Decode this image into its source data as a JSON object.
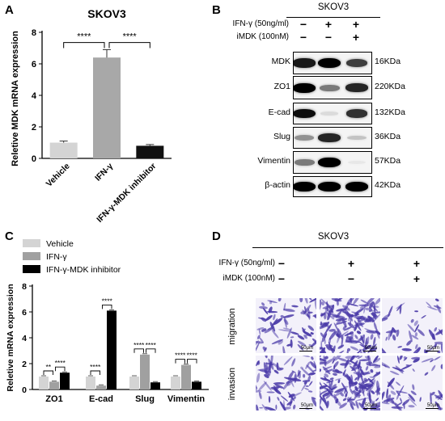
{
  "panels": {
    "A": "A",
    "B": "B",
    "C": "C",
    "D": "D"
  },
  "panel_a": {
    "chart_data": {
      "type": "bar",
      "title": "SKOV3",
      "ylabel": "Reletive MDK mRNA expression",
      "categories": [
        "Vehicle",
        "IFN-γ",
        "IFN-γ-MDK inhibitor"
      ],
      "values": [
        1.0,
        6.4,
        0.8
      ],
      "errors": [
        0.1,
        0.5,
        0.08
      ],
      "colors": [
        "#d4d4d4",
        "#a8a8a8",
        "#111111"
      ],
      "yticks": [
        "0",
        "2",
        "4",
        "6",
        "8"
      ],
      "ylim": [
        0,
        8
      ],
      "significance": [
        {
          "from": 0,
          "to": 1,
          "label": "****"
        },
        {
          "from": 1,
          "to": 2,
          "label": "****"
        }
      ]
    }
  },
  "panel_b": {
    "title": "SKOV3",
    "conditions": [
      {
        "label": "IFN-γ (50ng/ml)",
        "marks": [
          "−",
          "+",
          "+"
        ]
      },
      {
        "label": "iMDK (100nM)",
        "marks": [
          "−",
          "−",
          "+"
        ]
      }
    ],
    "blots": [
      {
        "protein": "MDK",
        "size": "16KDa",
        "intensity": [
          0.9,
          1.0,
          0.75
        ]
      },
      {
        "protein": "ZO1",
        "size": "220KDa",
        "intensity": [
          1.0,
          0.5,
          0.85
        ]
      },
      {
        "protein": "E-cad",
        "size": "132KDa",
        "intensity": [
          0.95,
          0.1,
          0.8
        ]
      },
      {
        "protein": "Slug",
        "size": "36KDa",
        "intensity": [
          0.4,
          0.85,
          0.2
        ]
      },
      {
        "protein": "Vimentin",
        "size": "57KDa",
        "intensity": [
          0.5,
          1.0,
          0.05
        ]
      },
      {
        "protein": "β-actin",
        "size": "42KDa",
        "intensity": [
          1.0,
          1.0,
          1.0
        ]
      }
    ]
  },
  "panel_c": {
    "chart_data": {
      "type": "bar",
      "ylabel": "Reletive  mRNA expression",
      "categories": [
        "ZO1",
        "E-cad",
        "Slug",
        "Vimentin"
      ],
      "series": [
        {
          "name": "Vehicle",
          "color": "#d4d4d4",
          "values": [
            1.0,
            1.0,
            1.0,
            1.0
          ]
        },
        {
          "name": "IFN-γ",
          "color": "#a0a0a0",
          "values": [
            0.6,
            0.3,
            2.7,
            1.9
          ]
        },
        {
          "name": "IFN-γ-MDK inhibitor",
          "color": "#000000",
          "values": [
            1.3,
            6.1,
            0.55,
            0.6
          ]
        }
      ],
      "yticks": [
        "0",
        "2",
        "4",
        "6",
        "8"
      ],
      "ylim": [
        0,
        8
      ],
      "legend": "top-left",
      "significance": [
        {
          "group": 0,
          "from": 0,
          "to": 1,
          "label": "**"
        },
        {
          "group": 0,
          "from": 1,
          "to": 2,
          "label": "****"
        },
        {
          "group": 1,
          "from": 0,
          "to": 1,
          "label": "****"
        },
        {
          "group": 1,
          "from": 1,
          "to": 2,
          "label": "****"
        },
        {
          "group": 2,
          "from": 0,
          "to": 1,
          "label": "****"
        },
        {
          "group": 2,
          "from": 1,
          "to": 2,
          "label": "****"
        },
        {
          "group": 3,
          "from": 0,
          "to": 1,
          "label": "****"
        },
        {
          "group": 3,
          "from": 1,
          "to": 2,
          "label": "****"
        }
      ]
    }
  },
  "panel_d": {
    "title": "SKOV3",
    "conditions": [
      {
        "label": "IFN-γ (50ng/ml)",
        "marks": [
          "−",
          "+",
          "+"
        ]
      },
      {
        "label": "iMDK (100nM)",
        "marks": [
          "−",
          "−",
          "+"
        ]
      }
    ],
    "rows": [
      "migration",
      "invasion"
    ],
    "density": [
      [
        0.45,
        1.0,
        0.3
      ],
      [
        0.55,
        1.0,
        0.35
      ]
    ],
    "scale_bar": "50μm",
    "stain_color": "#4a3aa8"
  }
}
